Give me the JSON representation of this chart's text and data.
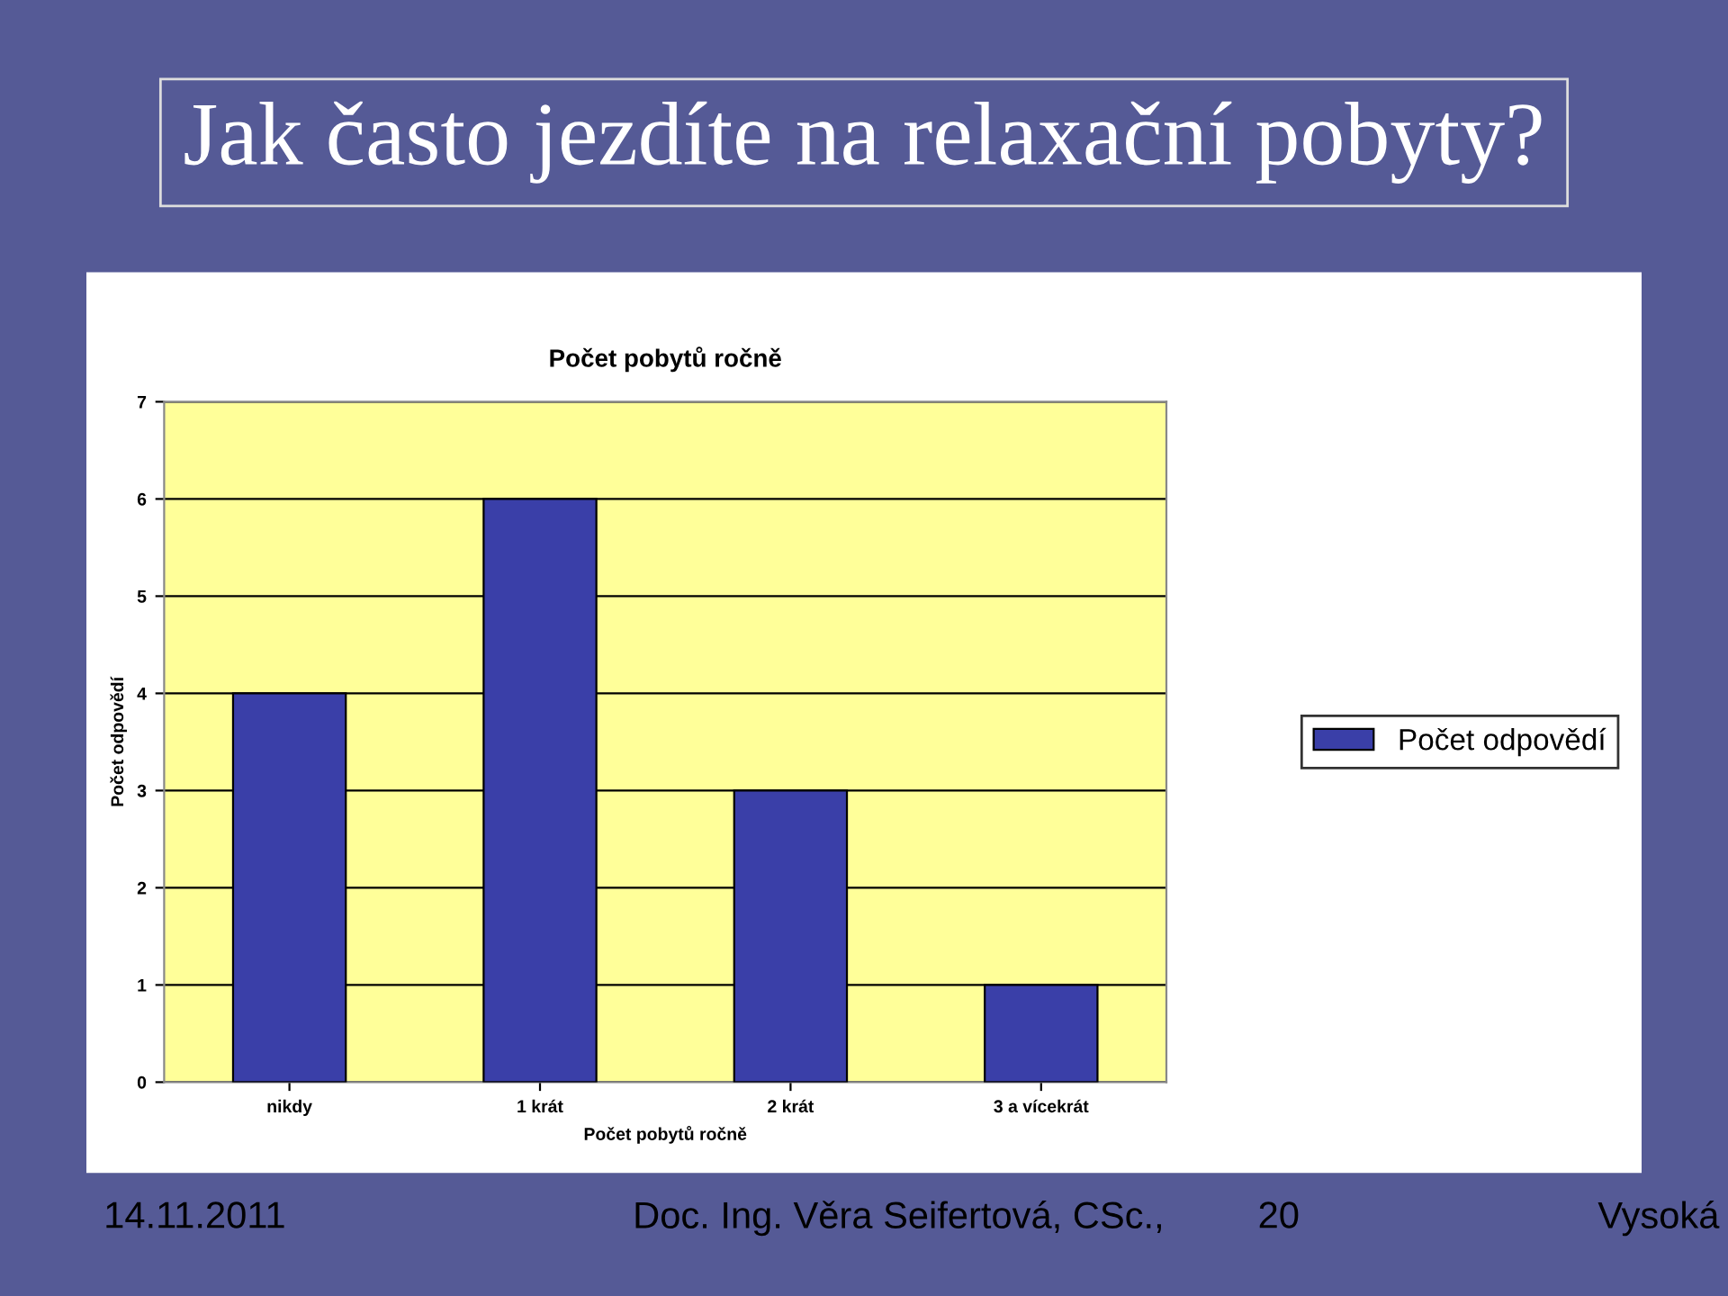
{
  "chart_data": {
    "type": "bar",
    "title": "Jak často jezdíte na relaxační pobyty?",
    "subtitle": "Počet pobytů ročně",
    "xlabel": "Počet pobytů ročně",
    "ylabel": "Počet odpovědí",
    "categories": [
      "nikdy",
      "1 krát",
      "2 krát",
      "3 a vícekrát"
    ],
    "series": [
      {
        "name": "Počet odpovědí",
        "color": "#3a3fa8",
        "values": [
          4,
          6,
          3,
          1
        ]
      }
    ],
    "ylim": [
      0,
      7
    ],
    "yticks": [
      0,
      1,
      2,
      3,
      4,
      5,
      6,
      7
    ],
    "grid": "y",
    "legend": "right",
    "annotations": [
      "14.11.2011",
      "Doc. Ing. Věra Seifertová, CSc.,",
      "20",
      "Vysoká"
    ]
  }
}
